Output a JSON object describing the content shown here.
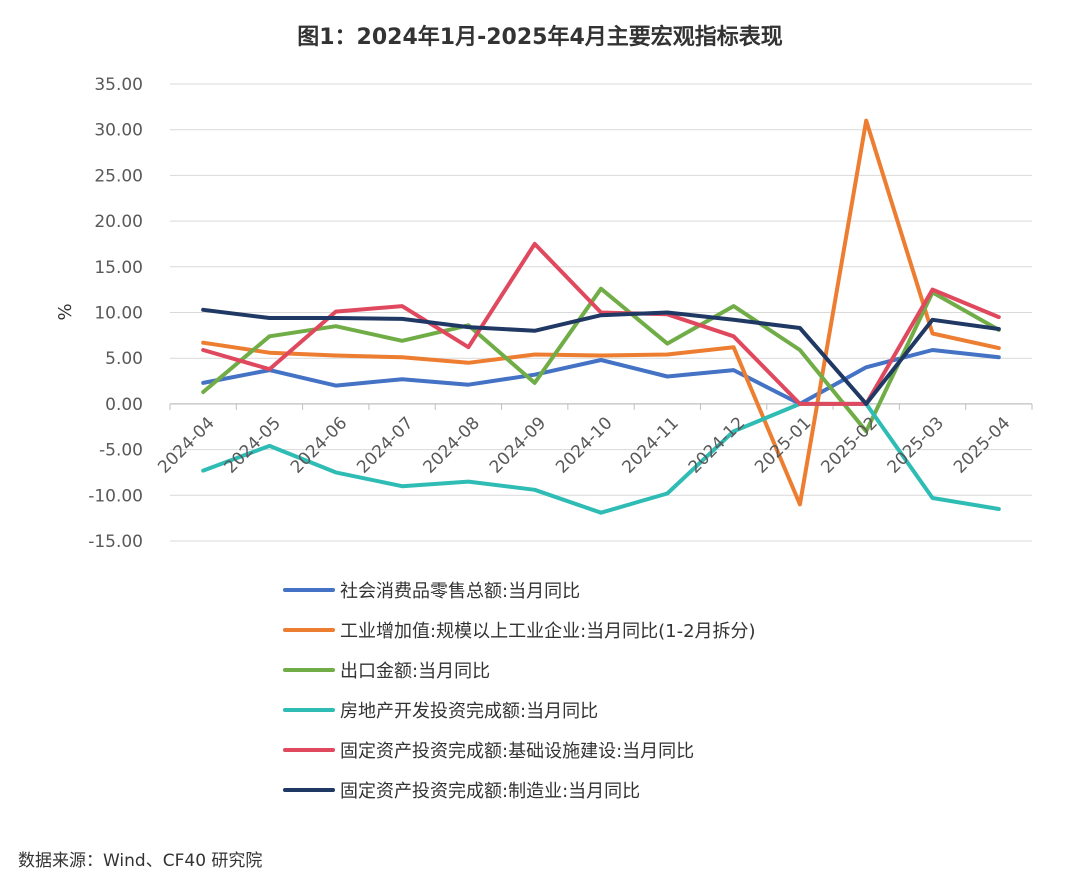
{
  "chart_data": {
    "type": "line",
    "title": "图1：2024年1月-2025年4月主要宏观指标表现",
    "ylabel": "%",
    "xlabel": "",
    "ylim": [
      -15,
      35
    ],
    "yticks": [
      -15,
      -10,
      -5,
      0,
      5,
      10,
      15,
      20,
      25,
      30,
      35
    ],
    "ytick_labels": [
      "-15.00",
      "-10.00",
      "-5.00",
      "0.00",
      "5.00",
      "10.00",
      "15.00",
      "20.00",
      "25.00",
      "30.00",
      "35.00"
    ],
    "categories": [
      "2024-04",
      "2024-05",
      "2024-06",
      "2024-07",
      "2024-08",
      "2024-09",
      "2024-10",
      "2024-11",
      "2024-12",
      "2025-01",
      "2025-02",
      "2025-03",
      "2025-04"
    ],
    "grid": true,
    "legend_position": "bottom",
    "series": [
      {
        "name": "社会消费品零售总额:当月同比",
        "color": "#4472C4",
        "values": [
          2.3,
          3.7,
          2.0,
          2.7,
          2.1,
          3.2,
          4.8,
          3.0,
          3.7,
          0,
          4.0,
          5.9,
          5.1
        ]
      },
      {
        "name": "工业增加值:规模以上工业企业:当月同比(1-2月拆分)",
        "color": "#ED7D31",
        "values": [
          6.7,
          5.6,
          5.3,
          5.1,
          4.5,
          5.4,
          5.3,
          5.4,
          6.2,
          -11.0,
          31.0,
          7.7,
          6.1
        ]
      },
      {
        "name": "出口金额:当月同比",
        "color": "#70AD47",
        "values": [
          1.3,
          7.4,
          8.5,
          6.9,
          8.6,
          2.3,
          12.6,
          6.6,
          10.7,
          5.9,
          -3.0,
          12.2,
          8.1
        ]
      },
      {
        "name": "房地产开发投资完成额:当月同比",
        "color": "#2EBCB4",
        "values": [
          -7.3,
          -4.6,
          -7.5,
          -9.0,
          -8.5,
          -9.4,
          -11.9,
          -9.8,
          -3.0,
          0,
          0,
          -10.3,
          -11.5
        ]
      },
      {
        "name": "固定资产投资完成额:基础设施建设:当月同比",
        "color": "#E0485E",
        "values": [
          5.9,
          3.8,
          10.1,
          10.7,
          6.2,
          17.5,
          10.0,
          9.8,
          7.4,
          0,
          0,
          12.5,
          9.5
        ]
      },
      {
        "name": "固定资产投资完成额:制造业:当月同比",
        "color": "#203864",
        "values": [
          10.3,
          9.4,
          9.4,
          9.3,
          8.4,
          8.0,
          9.7,
          10.0,
          9.2,
          8.3,
          0,
          9.2,
          8.2
        ]
      }
    ]
  },
  "source_note": "数据来源：Wind、CF40 研究院"
}
